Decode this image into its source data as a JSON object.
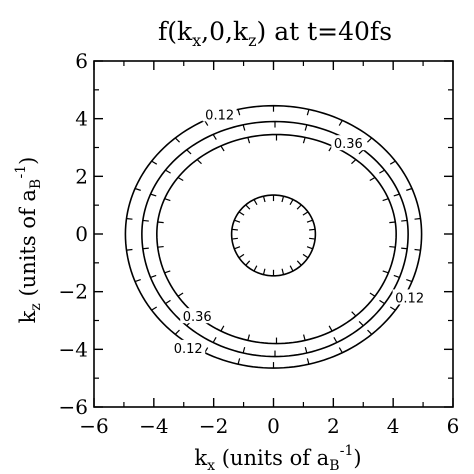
{
  "chart_data": {
    "type": "contour",
    "title": {
      "main": "f(k",
      "sub1": "x",
      "mid": ",0,k",
      "sub2": "z",
      "tail": ") at t=40fs"
    },
    "xlabel": {
      "pre": "k",
      "sub": "x",
      "mid": " (units of a",
      "sub2": "B",
      "sup": "-1",
      "post": ")"
    },
    "ylabel": {
      "pre": "k",
      "sub": "z",
      "mid": " (units of a",
      "sub2": "B",
      "sup": "-1",
      "post": ")"
    },
    "xlim": [
      -6,
      6
    ],
    "ylim": [
      -6,
      6
    ],
    "xticks": [
      -6,
      -4,
      -2,
      0,
      2,
      4,
      6
    ],
    "yticks": [
      -6,
      -4,
      -2,
      0,
      2,
      4,
      6
    ],
    "contours": [
      {
        "level": "0.12",
        "cx": 0.0,
        "cz": 0.0,
        "rx": 4.95,
        "rz_top": 4.45,
        "rz_bottom": 4.65,
        "labels": [
          {
            "text": "0.12",
            "kx": -1.8,
            "kz": 4.15
          },
          {
            "text": "0.12",
            "kx": 4.55,
            "kz": -2.2
          },
          {
            "text": "0.12",
            "kx": -2.85,
            "kz": -3.95
          }
        ]
      },
      {
        "level": "",
        "cx": 0.05,
        "cz": 0.0,
        "rx": 4.45,
        "rz_top": 3.9,
        "rz_bottom": 4.25,
        "labels": []
      },
      {
        "level": "0.36",
        "cx": 0.1,
        "cz": 0.0,
        "rx": 4.0,
        "rz_top": 3.45,
        "rz_bottom": 3.8,
        "labels": [
          {
            "text": "0.36",
            "kx": 2.5,
            "kz": 3.15
          },
          {
            "text": "0.36",
            "kx": -2.55,
            "kz": -2.85
          }
        ]
      },
      {
        "level": "",
        "cx": 0.0,
        "cz": 0.0,
        "rx": 1.4,
        "rz_top": 1.35,
        "rz_bottom": 1.45,
        "labels": []
      }
    ]
  }
}
